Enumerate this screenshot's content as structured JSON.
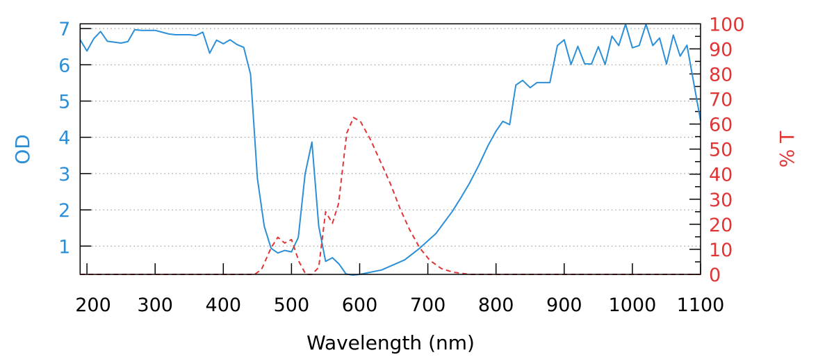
{
  "chart_data": {
    "type": "line",
    "title": "",
    "xlabel": "Wavelength (nm)",
    "ylabel": "OD",
    "y2label": "% T",
    "xlim": [
      190,
      1100
    ],
    "ylim": [
      0.22,
      7.13
    ],
    "y2lim": [
      0,
      100
    ],
    "grid": true,
    "xticks": [
      200,
      300,
      400,
      500,
      600,
      700,
      800,
      900,
      1000,
      1100
    ],
    "yticks": [
      1,
      2,
      3,
      4,
      5,
      6,
      7
    ],
    "y2ticks": [
      0,
      10,
      20,
      30,
      40,
      50,
      60,
      70,
      80,
      90,
      100
    ],
    "colors": {
      "od": "#2b8fd8",
      "t": "#e03535"
    },
    "series": [
      {
        "name": "OD",
        "axis": "left",
        "style": "solid",
        "x": [
          190,
          200,
          210,
          220,
          230,
          250,
          260,
          270,
          280,
          300,
          320,
          330,
          350,
          360,
          370,
          380,
          390,
          400,
          410,
          420,
          430,
          440,
          450,
          460,
          470,
          480,
          490,
          500,
          510,
          520,
          530,
          540,
          550,
          560,
          570,
          580,
          590,
          600,
          632,
          666,
          688,
          712,
          736,
          749,
          761,
          775,
          788,
          800,
          810,
          820,
          829,
          839,
          850,
          860,
          879,
          890,
          900,
          910,
          920,
          930,
          940,
          950,
          960,
          970,
          980,
          990,
          1000,
          1010,
          1020,
          1030,
          1040,
          1050,
          1060,
          1070,
          1080,
          1100
        ],
        "y": [
          6.69,
          6.38,
          6.72,
          6.92,
          6.65,
          6.6,
          6.64,
          6.97,
          6.95,
          6.95,
          6.85,
          6.83,
          6.83,
          6.81,
          6.9,
          6.32,
          6.68,
          6.58,
          6.69,
          6.56,
          6.48,
          5.74,
          2.86,
          1.55,
          0.94,
          0.81,
          0.88,
          0.84,
          1.24,
          2.99,
          3.87,
          1.55,
          0.58,
          0.68,
          0.5,
          0.23,
          0.2,
          0.22,
          0.34,
          0.62,
          0.94,
          1.35,
          1.96,
          2.35,
          2.73,
          3.24,
          3.76,
          4.17,
          4.44,
          4.35,
          5.44,
          5.57,
          5.37,
          5.51,
          5.51,
          6.53,
          6.69,
          6.01,
          6.51,
          6.03,
          6.02,
          6.5,
          6.01,
          6.79,
          6.53,
          7.12,
          6.47,
          6.53,
          7.12,
          6.53,
          6.74,
          6.02,
          6.82,
          6.24,
          6.54,
          4.46
        ]
      },
      {
        "name": "% T",
        "axis": "right",
        "style": "dashed",
        "x": [
          190,
          446,
          456,
          470,
          480,
          490,
          500,
          511,
          521,
          530,
          540,
          550,
          560,
          569,
          581,
          591,
          601,
          616,
          633,
          646,
          659,
          673,
          688,
          703,
          720,
          737,
          761,
          1100
        ],
        "y": [
          0,
          0,
          1.9,
          10.6,
          14.8,
          12.5,
          13.9,
          5.1,
          0,
          0,
          2.8,
          25,
          20.4,
          28.2,
          56.4,
          62.6,
          61.1,
          53.7,
          43.5,
          35.6,
          26.4,
          18,
          10.6,
          5.6,
          2.3,
          0.9,
          0,
          0
        ]
      }
    ]
  }
}
